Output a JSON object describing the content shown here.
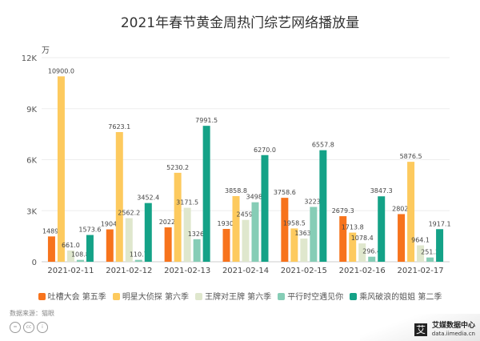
{
  "chart_data": {
    "type": "bar",
    "title": "2021年春节黄金周热门综艺网络播放量",
    "ylabel": "万",
    "ylim": [
      0,
      12000
    ],
    "yticks": [
      "0",
      "3K",
      "6K",
      "9K",
      "12K"
    ],
    "grid": true,
    "legend_position": "bottom",
    "categories": [
      "2021-02-11",
      "2021-02-12",
      "2021-02-13",
      "2021-02-14",
      "2021-02-15",
      "2021-02-16",
      "2021-02-17"
    ],
    "series": [
      {
        "name": "吐槽大会 第五季",
        "color": "#f7731c",
        "values": [
          1489,
          1904,
          2022,
          1930,
          3758.6,
          2679.3,
          2802
        ],
        "labels": [
          "1489.",
          "1904.",
          "2022.",
          "1930.",
          "3758.6",
          "2679.3",
          "2802."
        ]
      },
      {
        "name": "明星大侦探 第六季",
        "color": "#fdca5e",
        "values": [
          10900.0,
          7623.1,
          5230.2,
          3858.8,
          1958.5,
          1713.8,
          5876.5
        ],
        "labels": [
          "10900.0",
          "7623.1",
          "5230.2",
          "3858.8",
          "1958.5",
          "1713.8",
          "5876.5"
        ]
      },
      {
        "name": "王牌对王牌 第六季",
        "color": "#dfe7cd",
        "values": [
          661.0,
          2562.2,
          3171.5,
          2459,
          1363,
          1078.4,
          964.1
        ],
        "labels": [
          "661.0",
          "2562.2",
          "3171.5",
          "2459.",
          "1363.",
          "1078.4",
          "964.1"
        ]
      },
      {
        "name": "平行时空遇见你",
        "color": "#86cdb6",
        "values": [
          108.8,
          110.7,
          1326,
          3498,
          3223,
          296.4,
          251.3
        ],
        "labels": [
          "108.8",
          "110.7",
          "1326.",
          "3498.",
          "3223.",
          "296.4",
          "251.3"
        ]
      },
      {
        "name": "乘风破浪的姐姐 第二季",
        "color": "#14a287",
        "values": [
          1573.6,
          3452.4,
          7991.5,
          6270.0,
          6557.8,
          3847.3,
          1917.1
        ],
        "labels": [
          "1573.6",
          "3452.4",
          "7991.5",
          "6270.0",
          "6557.8",
          "3847.3",
          "1917.1"
        ]
      }
    ]
  },
  "footer": {
    "source": "数据来源：猫眼",
    "logo_name": "艾媒数据中心",
    "logo_url": "data.iimedia.cn",
    "logo_mark": "艾"
  }
}
